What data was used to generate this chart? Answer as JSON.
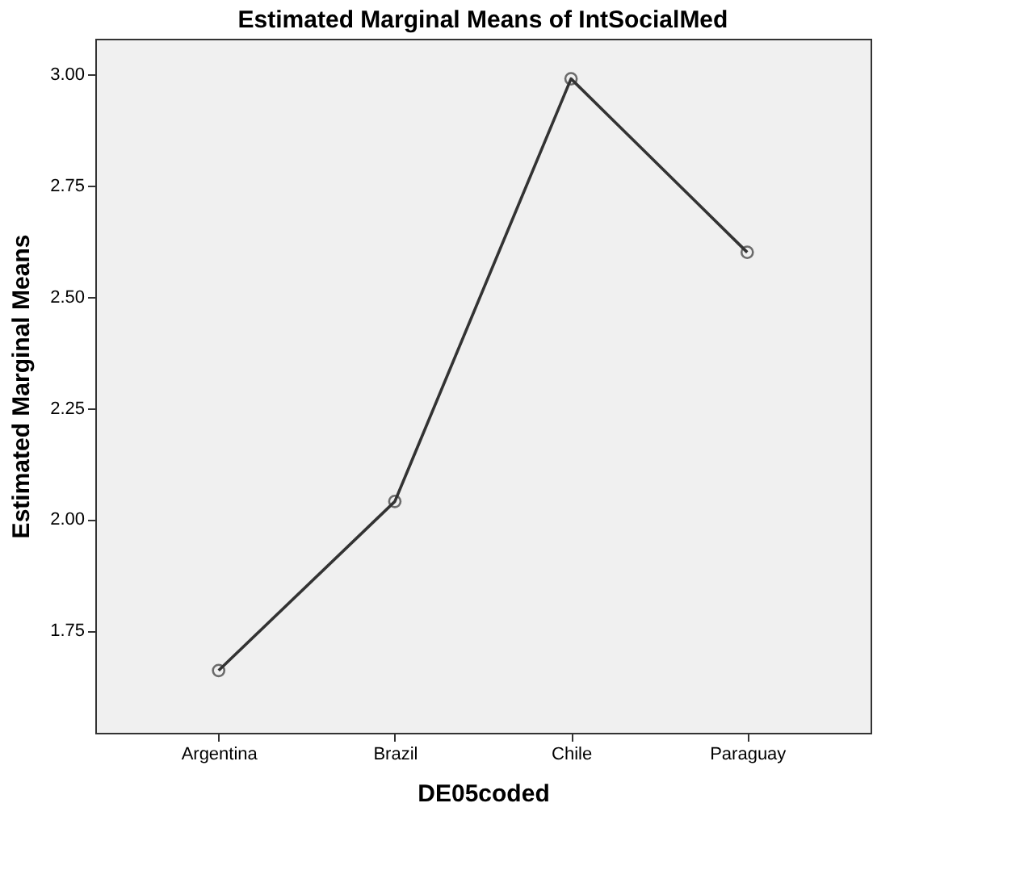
{
  "chart_data": {
    "type": "line",
    "title": "Estimated Marginal Means of IntSocialMed",
    "xlabel": "DE05coded",
    "ylabel": "Estimated Marginal Means",
    "categories": [
      "Argentina",
      "Brazil",
      "Chile",
      "Paraguay"
    ],
    "series": [
      {
        "color": "#333333",
        "values": [
          1.66,
          2.04,
          2.99,
          2.6
        ]
      }
    ],
    "ylim": [
      1.52,
      3.08
    ],
    "yticks": [
      {
        "value": 1.75,
        "label": "1.75"
      },
      {
        "value": 2.0,
        "label": "2.00"
      },
      {
        "value": 2.25,
        "label": "2.25"
      },
      {
        "value": 2.5,
        "label": "2.50"
      },
      {
        "value": 2.75,
        "label": "2.75"
      },
      {
        "value": 3.0,
        "label": "3.00"
      }
    ],
    "grid": false,
    "marker": "circle",
    "line_style": "solid"
  }
}
